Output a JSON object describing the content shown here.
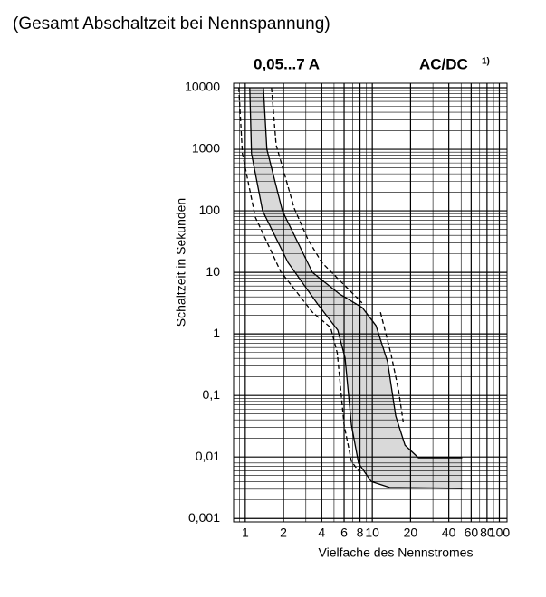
{
  "header": "(Gesamt Abschaltzeit bei Nennspannung)",
  "chart_data": {
    "type": "line",
    "title": "0,05...7 A",
    "subtitle": "AC/DC",
    "subtitle_note": "1)",
    "y_label": "Schaltzeit in Sekunden",
    "x_label": "Vielfache des Nennstromes",
    "log_x": true,
    "log_y": true,
    "grid": true,
    "xlim": [
      0.81,
      115
    ],
    "ylim": [
      0.00088,
      11850
    ],
    "xticks": [
      1,
      2,
      4,
      6,
      8,
      10,
      20,
      40,
      60,
      80,
      100
    ],
    "yticks": [
      10000,
      1000,
      100,
      10,
      1,
      {
        "value": 0.1,
        "label": "0,1"
      },
      {
        "value": 0.01,
        "label": "0,01"
      },
      {
        "value": 0.001,
        "label": "0,001"
      }
    ],
    "x_minor_ticks": [
      0.9,
      3,
      5,
      7,
      9,
      30,
      50,
      70,
      90
    ],
    "y_minor_ticks": [
      0.002,
      0.003,
      0.004,
      0.005,
      0.006,
      0.007,
      0.008,
      0.009,
      0.02,
      0.03,
      0.04,
      0.05,
      0.06,
      0.07,
      0.08,
      0.09,
      0.2,
      0.3,
      0.4,
      0.5,
      0.6,
      0.7,
      0.8,
      0.9,
      2,
      3,
      4,
      5,
      6,
      7,
      8,
      9,
      20,
      30,
      40,
      50,
      60,
      70,
      80,
      90,
      200,
      300,
      400,
      500,
      600,
      700,
      800,
      900,
      2000,
      3000,
      4000,
      5000,
      6000,
      7000,
      8000,
      9000
    ],
    "fill_between": [
      0,
      1
    ],
    "fill_color": "#d9d9d9",
    "series": [
      {
        "color": "#000000",
        "dash": false,
        "x": [
          1.085,
          1.12,
          1.37,
          2.17,
          3.67,
          5.35,
          6.1,
          6.85,
          7.8,
          9.8,
          13.7,
          51
        ],
        "values": [
          10000,
          850,
          100,
          14.5,
          3.16,
          1.15,
          0.41,
          0.033,
          0.0079,
          0.004,
          0.0032,
          0.0031
        ]
      },
      {
        "color": "#000000",
        "dash": false,
        "x": [
          1.39,
          1.48,
          1.96,
          3.38,
          5.53,
          8.35,
          10.7,
          13.2,
          15.3,
          18.1,
          23.1,
          51
        ],
        "values": [
          10000,
          1000,
          100,
          10,
          4.44,
          2.67,
          1.36,
          0.35,
          0.046,
          0.0155,
          0.0097,
          0.0097
        ]
      },
      {
        "color": "#000000",
        "dash": true,
        "x": [
          0.89,
          0.95,
          1.2,
          1.9,
          3.38,
          4.7,
          5.3,
          6.0,
          6.85,
          8.3
        ],
        "values": [
          10000,
          850,
          79,
          10.3,
          2.25,
          1.27,
          0.49,
          0.033,
          0.0085,
          0.005
        ]
      },
      {
        "color": "#000000",
        "dash": true,
        "x": [
          1.61,
          1.75,
          2.43,
          3.1,
          4.0,
          8.3,
          10.0,
          11.6,
          14.1,
          16.1,
          17.5
        ],
        "values": [
          10000,
          1180,
          110,
          35,
          14.5,
          3.2,
          null,
          2.25,
          0.45,
          0.12,
          0.0375
        ]
      }
    ]
  }
}
